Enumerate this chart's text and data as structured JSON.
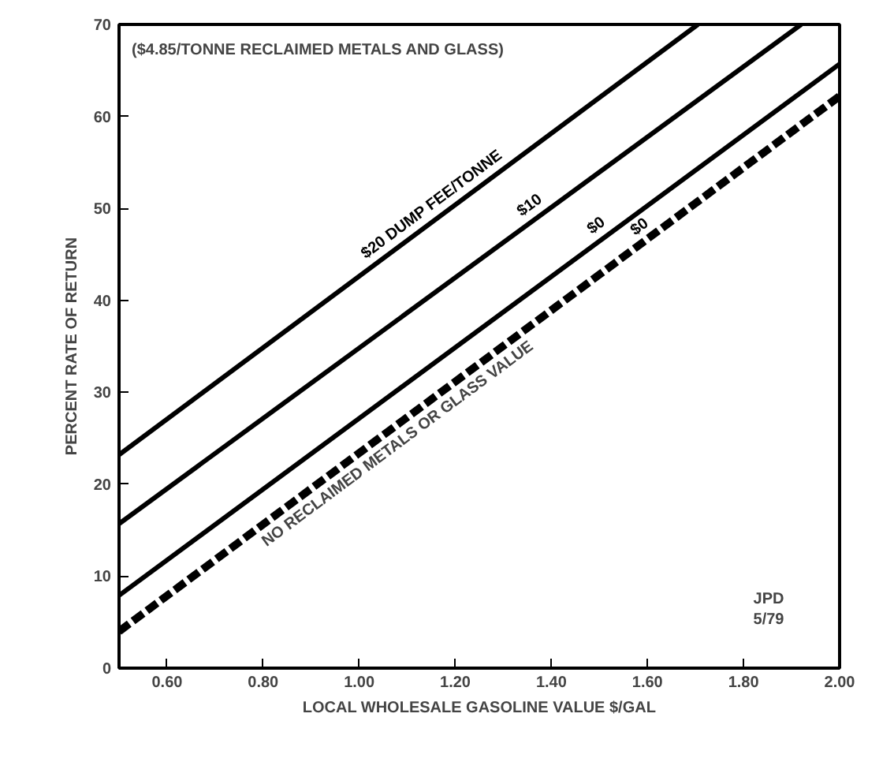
{
  "chart_data": {
    "type": "line",
    "xlabel": "LOCAL WHOLESALE GASOLINE VALUE $/GAL",
    "ylabel": "PERCENT RATE OF RETURN",
    "xlim": [
      0.5,
      2.0
    ],
    "ylim": [
      0,
      70
    ],
    "xticks": [
      {
        "value": 0.6,
        "label": "0.60"
      },
      {
        "value": 0.8,
        "label": "0.80"
      },
      {
        "value": 1.0,
        "label": "1.00"
      },
      {
        "value": 1.2,
        "label": "1.20"
      },
      {
        "value": 1.4,
        "label": "1.40"
      },
      {
        "value": 1.6,
        "label": "1.60"
      },
      {
        "value": 1.8,
        "label": "1.80"
      },
      {
        "value": 2.0,
        "label": "2.00"
      }
    ],
    "yticks": [
      0,
      10,
      20,
      30,
      40,
      50,
      60,
      70
    ],
    "grid": false,
    "marker": "none",
    "series": [
      {
        "name": "$20 DUMP FEE/TONNE",
        "color": "#000000",
        "line_style": "solid",
        "x": [
          0.5,
          1.705
        ],
        "values": [
          23.2,
          70
        ]
      },
      {
        "name": "$10",
        "color": "#000000",
        "line_style": "solid",
        "x": [
          0.5,
          1.92
        ],
        "values": [
          15.7,
          70
        ]
      },
      {
        "name": "$0",
        "color": "#000000",
        "line_style": "solid",
        "x": [
          0.5,
          2.0
        ],
        "values": [
          7.9,
          65.7
        ]
      },
      {
        "name": "$0",
        "color": "#000000",
        "line_style": "dashed",
        "x": [
          0.5,
          2.0
        ],
        "values": [
          4.0,
          62.2
        ]
      }
    ],
    "annotations": [
      "($4.85/TONNE RECLAIMED METALS AND GLASS)",
      "NO RECLAIMED METALS OR GLASS VALUE",
      "JPD\n5/79"
    ]
  }
}
